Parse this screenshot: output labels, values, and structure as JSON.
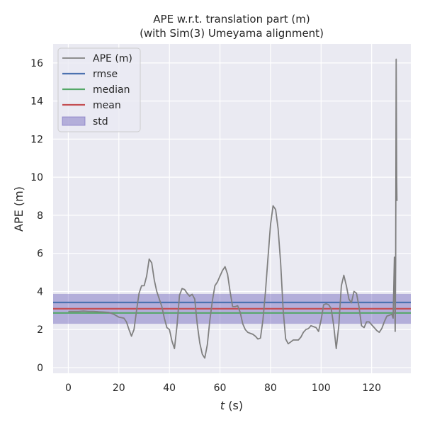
{
  "chart_data": {
    "type": "line",
    "title": "APE w.r.t. translation part (m)",
    "subtitle": "(with Sim(3) Umeyama alignment)",
    "xlabel_italic": "t",
    "xlabel_unit": " (s)",
    "ylabel": "APE (m)",
    "xlim": [
      -6,
      135.5
    ],
    "ylim": [
      -0.3,
      17
    ],
    "xticks": [
      0,
      20,
      40,
      60,
      80,
      100,
      120
    ],
    "yticks": [
      0,
      2,
      4,
      6,
      8,
      10,
      12,
      14,
      16
    ],
    "grid": true,
    "legend_position": "top-left",
    "legend": [
      "APE (m)",
      "rmse",
      "median",
      "mean",
      "std"
    ],
    "colors": {
      "ape": "#808080",
      "rmse": "#4c72b0",
      "median": "#55a868",
      "mean": "#c44e52",
      "std": "#7066bc",
      "background": "#eaeaf2",
      "grid": "#ffffff"
    },
    "stats": {
      "rmse": 3.42,
      "median": 2.87,
      "mean": 3.09,
      "std_low": 2.3,
      "std_high": 3.87
    },
    "series": [
      {
        "name": "APE (m)",
        "x": [
          0,
          2,
          4,
          6,
          8,
          10,
          12,
          14,
          16,
          18,
          20,
          22,
          23,
          24,
          25,
          26,
          27,
          28,
          29,
          30,
          31,
          32,
          33,
          34,
          35,
          36,
          37,
          38,
          39,
          40,
          41,
          42,
          43,
          44,
          45,
          46,
          47,
          48,
          49,
          50,
          51,
          52,
          53,
          54,
          55,
          56,
          57,
          58,
          59,
          60,
          61,
          62,
          63,
          64,
          65,
          66,
          67,
          68,
          69,
          70,
          71,
          72,
          73,
          74,
          75,
          76,
          77,
          78,
          79,
          80,
          81,
          82,
          83,
          84,
          85,
          86,
          87,
          88,
          89,
          90,
          91,
          92,
          93,
          94,
          95,
          96,
          97,
          98,
          99,
          100,
          101,
          102,
          103,
          104,
          105,
          106,
          107,
          108,
          109,
          110,
          111,
          112,
          113,
          114,
          115,
          116,
          117,
          118,
          119,
          120,
          121,
          122,
          123,
          124,
          125,
          126,
          127,
          128,
          128.5,
          129,
          129.3,
          129.5,
          129.7,
          129.9,
          130
        ],
        "values": [
          2.95,
          2.95,
          2.95,
          2.97,
          2.95,
          2.95,
          2.93,
          2.92,
          2.9,
          2.8,
          2.65,
          2.6,
          2.4,
          2.0,
          1.65,
          2.0,
          3.0,
          3.9,
          4.3,
          4.3,
          4.8,
          5.7,
          5.5,
          4.6,
          4.0,
          3.6,
          3.2,
          2.6,
          2.1,
          2.0,
          1.4,
          1.0,
          2.2,
          3.8,
          4.15,
          4.1,
          3.9,
          3.75,
          3.85,
          3.6,
          2.3,
          1.3,
          0.7,
          0.5,
          1.2,
          2.5,
          3.5,
          4.3,
          4.5,
          4.8,
          5.1,
          5.3,
          4.9,
          4.0,
          3.2,
          3.2,
          3.25,
          2.9,
          2.3,
          2.0,
          1.85,
          1.8,
          1.75,
          1.65,
          1.5,
          1.55,
          2.5,
          4.0,
          5.8,
          7.5,
          8.5,
          8.3,
          7.3,
          5.5,
          3.0,
          1.5,
          1.25,
          1.35,
          1.45,
          1.45,
          1.45,
          1.6,
          1.85,
          2.0,
          2.05,
          2.2,
          2.15,
          2.1,
          1.9,
          2.5,
          3.3,
          3.35,
          3.3,
          3.1,
          2.2,
          1.0,
          2.2,
          4.3,
          4.85,
          4.3,
          3.6,
          3.4,
          4.0,
          3.9,
          3.2,
          2.2,
          2.1,
          2.4,
          2.4,
          2.25,
          2.1,
          1.95,
          1.85,
          2.05,
          2.4,
          2.7,
          2.75,
          2.8,
          2.6,
          5.8,
          1.9,
          5.5,
          16.2,
          10.0,
          8.75
        ]
      }
    ]
  }
}
